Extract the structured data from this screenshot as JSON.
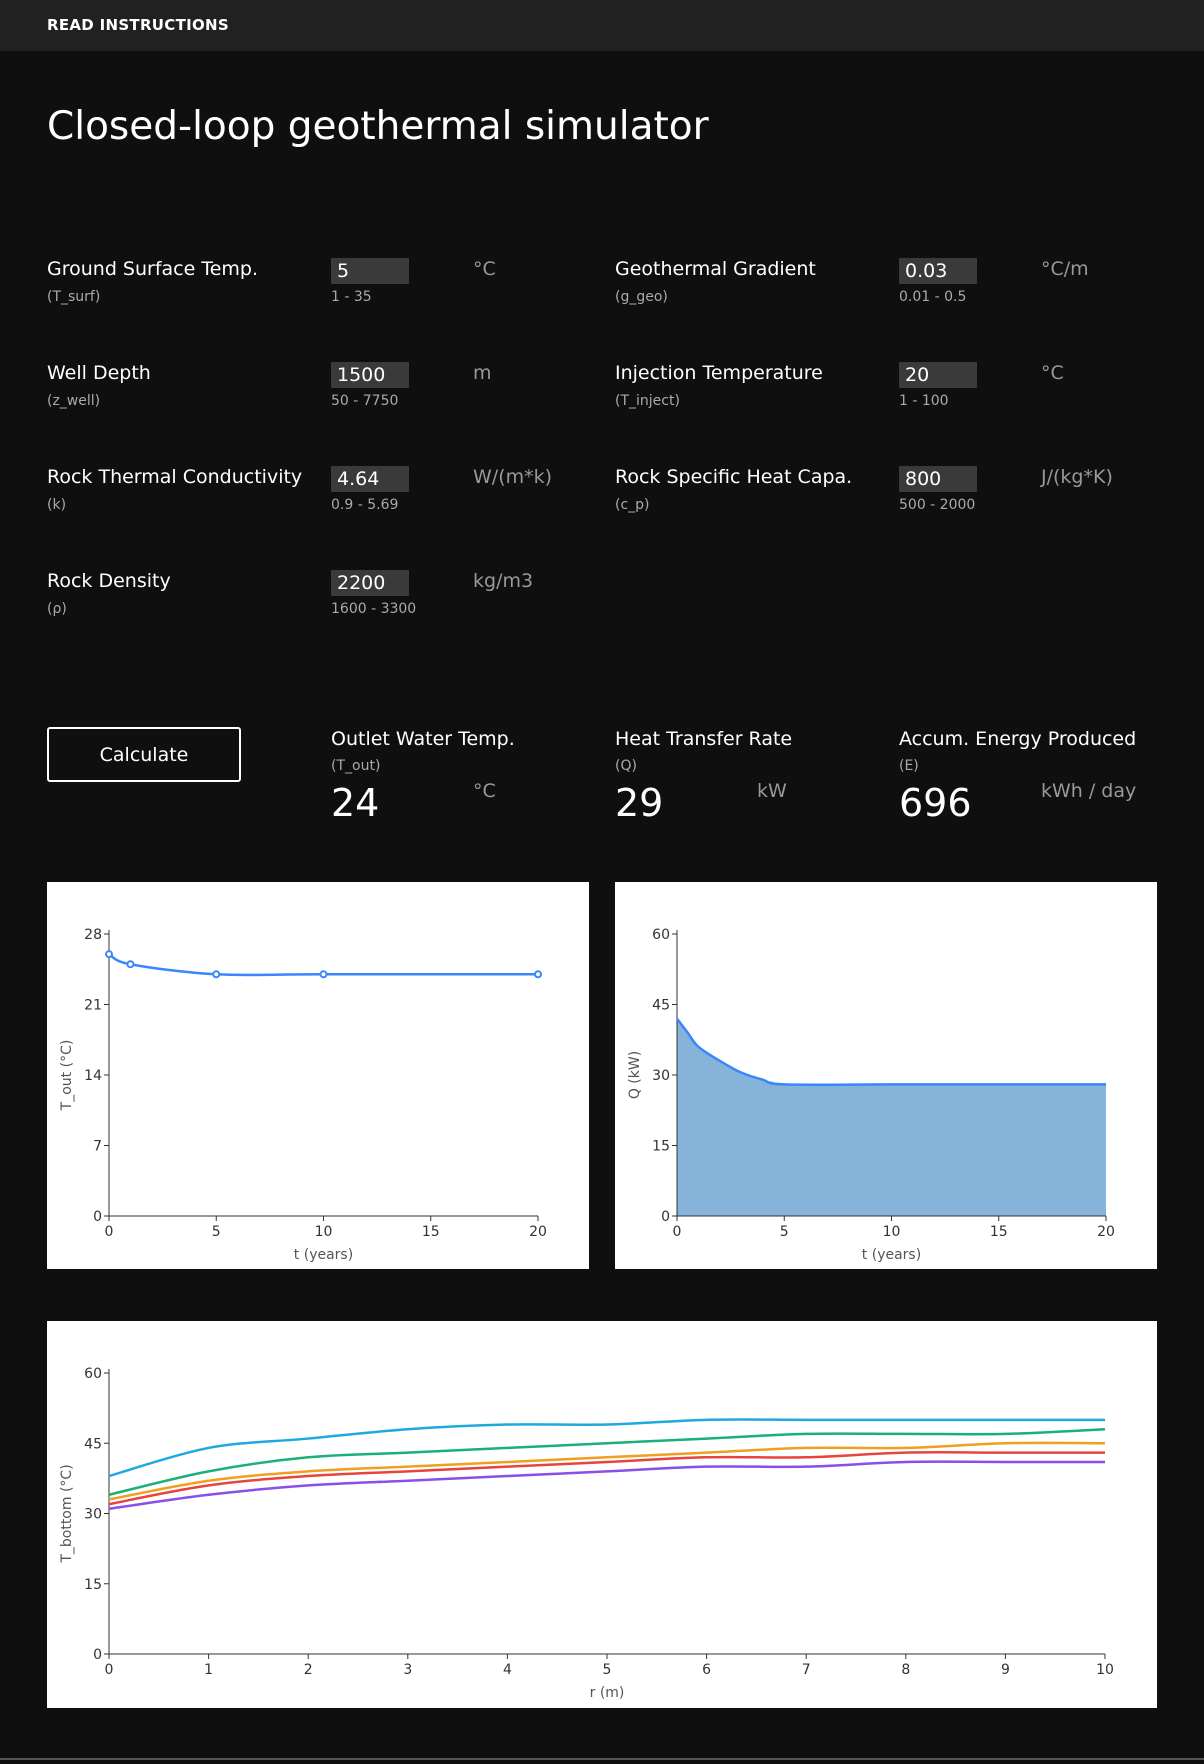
{
  "header": {
    "instructions_link": "READ INSTRUCTIONS"
  },
  "page_title": "Closed-loop geothermal simulator",
  "params": [
    {
      "id": "t-surf",
      "label": "Ground Surface Temp.",
      "symbol": "(T_surf)",
      "value": "5",
      "range": "1 - 35",
      "unit": "°C"
    },
    {
      "id": "g-geo",
      "label": "Geothermal Gradient",
      "symbol": "(g_geo)",
      "value": "0.03",
      "range": "0.01 - 0.5",
      "unit": "°C/m"
    },
    {
      "id": "z-well",
      "label": "Well Depth",
      "symbol": "(z_well)",
      "value": "1500",
      "range": "50 - 7750",
      "unit": "m"
    },
    {
      "id": "t-inject",
      "label": "Injection Temperature",
      "symbol": "(T_inject)",
      "value": "20",
      "range": "1 - 100",
      "unit": "°C"
    },
    {
      "id": "k",
      "label": "Rock Thermal Conductivity",
      "symbol": "(k)",
      "value": "4.64",
      "range": "0.9 - 5.69",
      "unit": "W/(m*k)"
    },
    {
      "id": "c-p",
      "label": "Rock Specific Heat Capa.",
      "symbol": "(c_p)",
      "value": "800",
      "range": "500 - 2000",
      "unit": "J/(kg*K)"
    },
    {
      "id": "rho",
      "label": "Rock Density",
      "symbol": "(ρ)",
      "value": "2200",
      "range": "1600 - 3300",
      "unit": "kg/m3"
    }
  ],
  "calculate_label": "Calculate",
  "outputs": [
    {
      "id": "t-out",
      "label": "Outlet Water Temp.",
      "symbol": "(T_out)",
      "value": "24",
      "unit": "°C"
    },
    {
      "id": "q",
      "label": "Heat Transfer Rate",
      "symbol": "(Q)",
      "value": "29",
      "unit": "kW"
    },
    {
      "id": "e",
      "label": "Accum. Energy Produced",
      "symbol": "(E)",
      "value": "696",
      "unit": "kWh / day"
    }
  ],
  "chart_data": [
    {
      "type": "line",
      "xlabel": "t (years)",
      "ylabel": "T_out (°C)",
      "xlim": [
        0,
        20
      ],
      "ylim": [
        0,
        28
      ],
      "xticks": [
        0,
        5,
        10,
        15,
        20
      ],
      "yticks": [
        0,
        7,
        14,
        21,
        28
      ],
      "color": "#3a86ff",
      "series": [
        {
          "x": [
            0,
            1,
            5,
            10,
            20
          ],
          "y": [
            26,
            25,
            24,
            24,
            24
          ],
          "markers": true
        }
      ]
    },
    {
      "type": "area",
      "xlabel": "t (years)",
      "ylabel": "Q (kW)",
      "xlim": [
        0,
        20
      ],
      "ylim": [
        0,
        60
      ],
      "xticks": [
        0,
        5,
        10,
        15,
        20
      ],
      "yticks": [
        0,
        15,
        30,
        45,
        60
      ],
      "line_color": "#3a86ff",
      "fill_color": "#85b3d9",
      "series": [
        {
          "x": [
            0,
            0.5,
            1,
            2,
            3,
            4,
            5,
            10,
            15,
            20
          ],
          "y": [
            42,
            39,
            36,
            33,
            30.5,
            29,
            28,
            28,
            28,
            28
          ]
        }
      ]
    },
    {
      "type": "line",
      "xlabel": "r (m)",
      "ylabel": "T_bottom (°C)",
      "xlim": [
        0,
        10
      ],
      "ylim": [
        0,
        60
      ],
      "xticks": [
        0,
        1,
        2,
        3,
        4,
        5,
        6,
        7,
        8,
        9,
        10
      ],
      "yticks": [
        0,
        15,
        30,
        45,
        60
      ],
      "series": [
        {
          "color": "#1fa8e0",
          "x": [
            0,
            1,
            2,
            3,
            4,
            5,
            6,
            7,
            8,
            9,
            10
          ],
          "y": [
            38,
            44,
            46,
            48,
            49,
            49,
            50,
            50,
            50,
            50,
            50
          ]
        },
        {
          "color": "#19b07c",
          "x": [
            0,
            1,
            2,
            3,
            4,
            5,
            6,
            7,
            8,
            9,
            10
          ],
          "y": [
            34,
            39,
            42,
            43,
            44,
            45,
            46,
            47,
            47,
            47,
            48
          ]
        },
        {
          "color": "#f0a020",
          "x": [
            0,
            1,
            2,
            3,
            4,
            5,
            6,
            7,
            8,
            9,
            10
          ],
          "y": [
            33,
            37,
            39,
            40,
            41,
            42,
            43,
            44,
            44,
            45,
            45
          ]
        },
        {
          "color": "#e8433c",
          "x": [
            0,
            1,
            2,
            3,
            4,
            5,
            6,
            7,
            8,
            9,
            10
          ],
          "y": [
            32,
            36,
            38,
            39,
            40,
            41,
            42,
            42,
            43,
            43,
            43
          ]
        },
        {
          "color": "#8a4fe8",
          "x": [
            0,
            1,
            2,
            3,
            4,
            5,
            6,
            7,
            8,
            9,
            10
          ],
          "y": [
            31,
            34,
            36,
            37,
            38,
            39,
            40,
            40,
            41,
            41,
            41
          ]
        }
      ]
    }
  ]
}
